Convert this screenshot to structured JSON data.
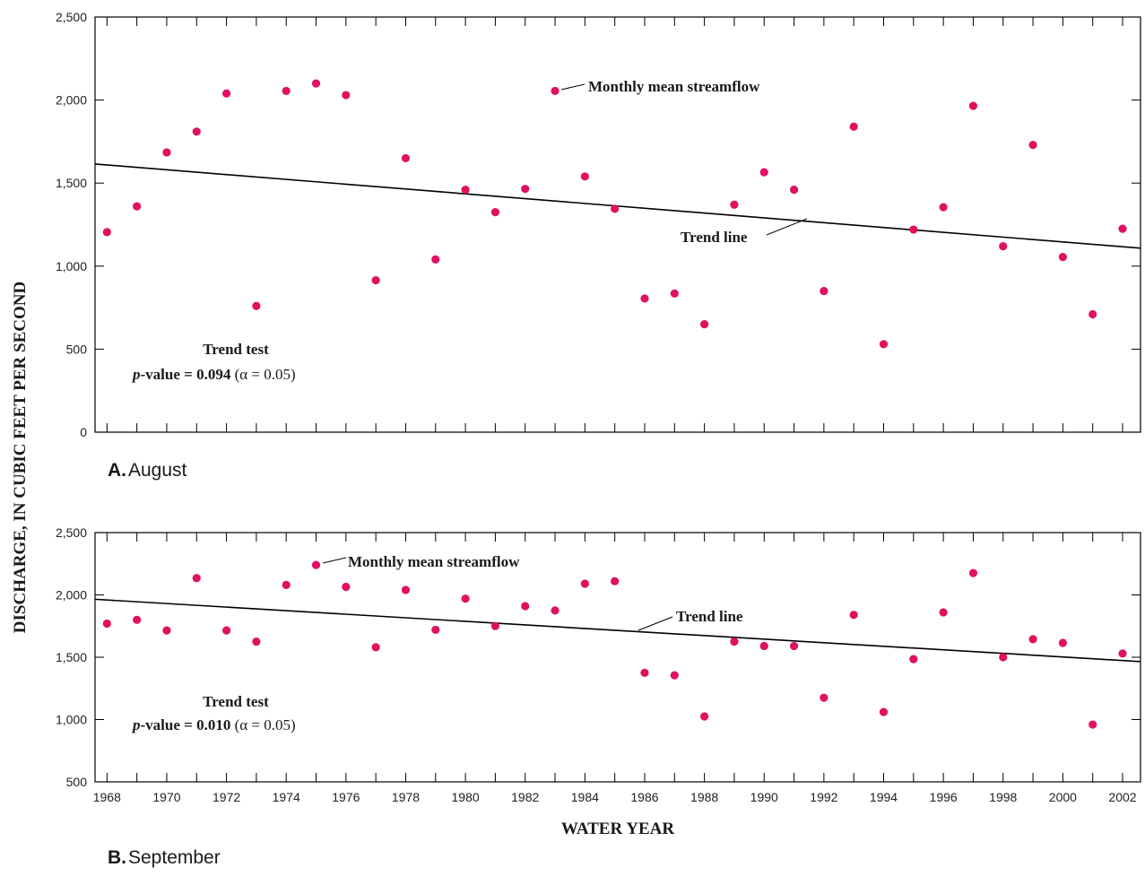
{
  "y_axis_title": "DISCHARGE, IN CUBIC FEET PER SECOND",
  "x_axis_title": "WATER YEAR",
  "colors": {
    "point": "#e0115f",
    "line": "#000000"
  },
  "chart_data": [
    {
      "type": "scatter",
      "panel_letter": "A.",
      "panel_title": "August",
      "xlim": [
        1967.6,
        2002.6
      ],
      "ylim": [
        0,
        2500
      ],
      "y_ticks": [
        0,
        500,
        1000,
        1500,
        2000,
        2500
      ],
      "y_tick_labels": [
        "0",
        "500",
        "1,000",
        "1,500",
        "2,000",
        "2,500"
      ],
      "x_ticks_labeled": [],
      "grid": false,
      "series": [
        {
          "name": "Monthly mean streamflow",
          "x": [
            1968,
            1969,
            1970,
            1971,
            1972,
            1973,
            1974,
            1975,
            1976,
            1977,
            1978,
            1979,
            1980,
            1981,
            1982,
            1983,
            1984,
            1985,
            1986,
            1987,
            1988,
            1989,
            1990,
            1991,
            1992,
            1993,
            1994,
            1995,
            1996,
            1997,
            1998,
            1999,
            2000,
            2001,
            2002
          ],
          "y": [
            1205,
            1360,
            1685,
            1810,
            2040,
            760,
            2055,
            2100,
            2030,
            915,
            1650,
            1040,
            1460,
            1325,
            1465,
            2055,
            1540,
            1345,
            805,
            835,
            650,
            1370,
            1565,
            1460,
            850,
            1840,
            530,
            1220,
            1355,
            1965,
            1120,
            1730,
            1055,
            710,
            1225
          ]
        }
      ],
      "trend_line": {
        "label": "Trend line",
        "x": [
          1967.6,
          2002.6
        ],
        "y": [
          1615,
          1108
        ]
      },
      "annotation": {
        "title": "Trend test",
        "p_value_label": "-value = 0.094",
        "p_symbol": "p",
        "alpha_label": "(α = 0.05)"
      }
    },
    {
      "type": "scatter",
      "panel_letter": "B.",
      "panel_title": "September",
      "xlim": [
        1967.6,
        2002.6
      ],
      "ylim": [
        500,
        2500
      ],
      "y_ticks": [
        500,
        1000,
        1500,
        2000,
        2500
      ],
      "y_tick_labels": [
        "500",
        "1,000",
        "1,500",
        "2,000",
        "2,500"
      ],
      "x_ticks_labeled": [
        1968,
        1970,
        1972,
        1974,
        1976,
        1978,
        1980,
        1982,
        1984,
        1986,
        1988,
        1990,
        1992,
        1994,
        1996,
        1998,
        2000,
        2002
      ],
      "grid": false,
      "series": [
        {
          "name": "Monthly mean streamflow",
          "x": [
            1968,
            1969,
            1970,
            1971,
            1972,
            1973,
            1974,
            1975,
            1976,
            1977,
            1978,
            1979,
            1980,
            1981,
            1982,
            1983,
            1984,
            1985,
            1986,
            1987,
            1988,
            1989,
            1990,
            1991,
            1992,
            1993,
            1994,
            1995,
            1996,
            1997,
            1998,
            1999,
            2000,
            2001,
            2002
          ],
          "y": [
            1770,
            1800,
            1715,
            2135,
            1715,
            1625,
            2080,
            2240,
            2065,
            1580,
            2040,
            1720,
            1970,
            1750,
            1910,
            1875,
            2090,
            2110,
            1375,
            1355,
            1025,
            1625,
            1590,
            1590,
            1175,
            1840,
            1060,
            1485,
            1860,
            2175,
            1500,
            1645,
            1615,
            960,
            1530
          ]
        }
      ],
      "trend_line": {
        "label": "Trend line",
        "x": [
          1967.6,
          2002.6
        ],
        "y": [
          1965,
          1465
        ]
      },
      "annotation": {
        "title": "Trend test",
        "p_value_label": "-value = 0.010",
        "p_symbol": "p",
        "alpha_label": "(α = 0.05)"
      }
    }
  ]
}
